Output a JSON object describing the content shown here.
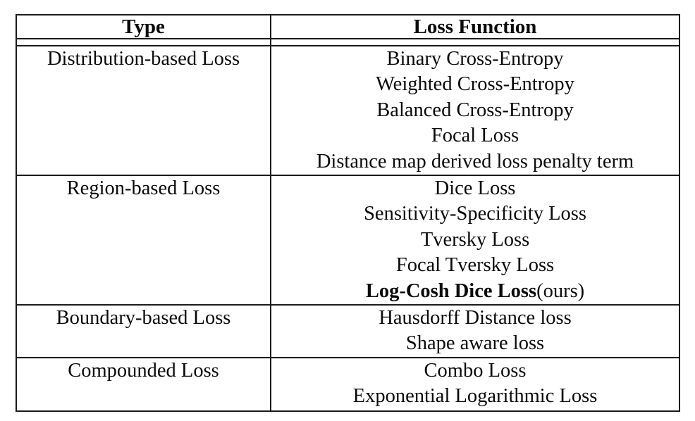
{
  "page": {
    "background": "#ffffff"
  },
  "table": {
    "style": {
      "border_color": "#1a1a1a",
      "text_color": "#0a0a0a"
    },
    "header": {
      "type": "Type",
      "loss_function": "Loss Function"
    },
    "rows": [
      {
        "type": "Distribution-based Loss",
        "losses": [
          "Binary Cross-Entropy",
          "Weighted Cross-Entropy",
          "Balanced Cross-Entropy",
          "Focal Loss",
          "Distance map derived loss penalty term"
        ]
      },
      {
        "type": "Region-based Loss",
        "losses": [
          "Dice Loss",
          "Sensitivity-Specificity Loss",
          "Tversky Loss",
          "Focal Tversky Loss",
          {
            "bold": "Log-Cosh Dice Loss",
            "rest": "(ours)"
          }
        ]
      },
      {
        "type": "Boundary-based Loss",
        "losses": [
          "Hausdorff Distance loss",
          "Shape aware loss"
        ]
      },
      {
        "type": "Compounded Loss",
        "losses": [
          "Combo Loss",
          "Exponential Logarithmic Loss"
        ]
      }
    ]
  }
}
